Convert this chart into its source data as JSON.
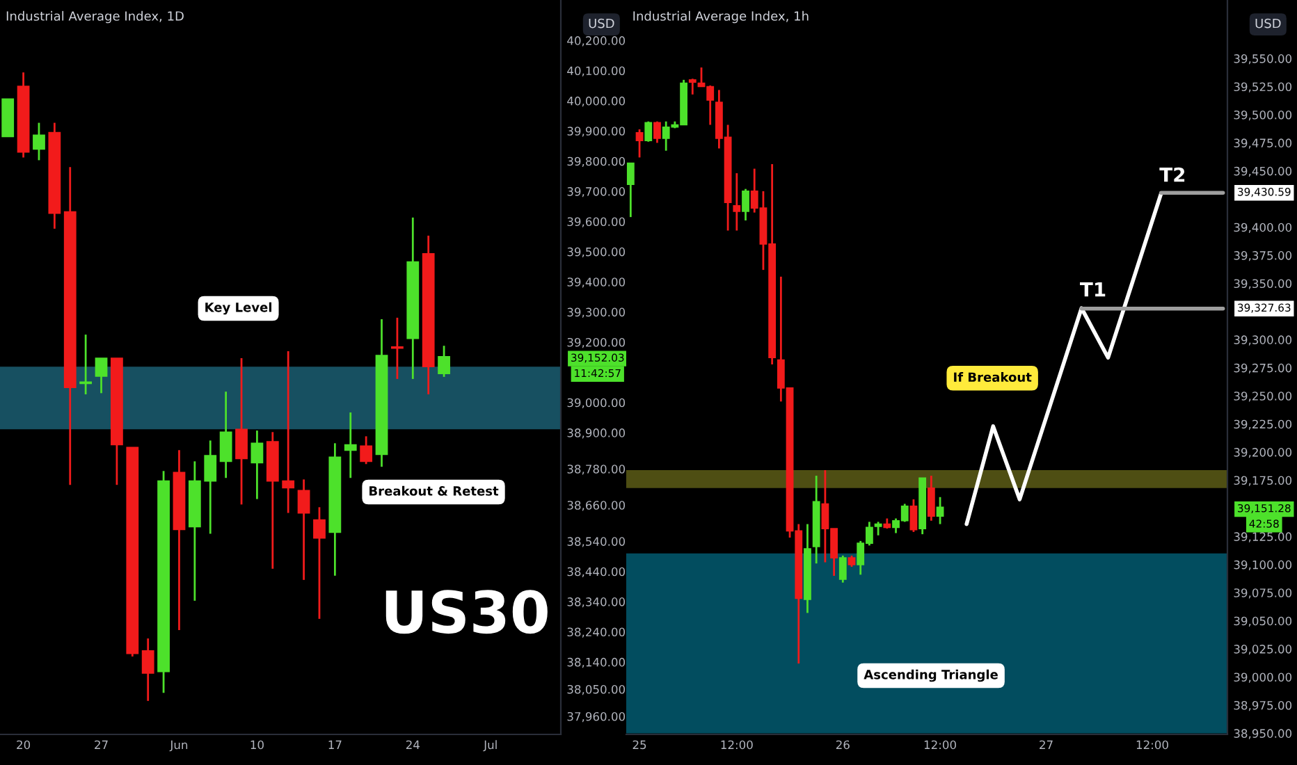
{
  "chart_data": [
    {
      "type": "candlestick",
      "title": "Industrial Average Index, 1D",
      "categories": [
        null,
        "20",
        null,
        null,
        null,
        null,
        "27",
        null,
        null,
        null,
        null,
        "Jun",
        null,
        null,
        null,
        null,
        "10",
        null,
        null,
        null,
        null,
        "17",
        null,
        null,
        null,
        null,
        "24",
        null,
        null,
        null,
        null,
        "Jul",
        null,
        null,
        null,
        null
      ],
      "ohlc": [
        [
          39881,
          40006,
          39881,
          40006
        ],
        [
          40048,
          40094,
          39812,
          39830
        ],
        [
          39840,
          39927,
          39803,
          39886
        ],
        [
          39895,
          39927,
          39576,
          39627
        ],
        [
          39632,
          39780,
          38727,
          39050
        ],
        [
          39063,
          39225,
          39027,
          39068
        ],
        [
          39087,
          39147,
          39031,
          39147
        ],
        [
          39147,
          39147,
          38727,
          38860
        ],
        [
          38851,
          38851,
          38158,
          38168
        ],
        [
          38177,
          38218,
          38011,
          38103
        ],
        [
          38108,
          38773,
          38038,
          38740
        ],
        [
          38768,
          38842,
          38246,
          38579
        ],
        [
          38588,
          38805,
          38343,
          38740
        ],
        [
          38740,
          38874,
          38565,
          38824
        ],
        [
          38805,
          39036,
          38750,
          38902
        ],
        [
          38911,
          39147,
          38662,
          38814
        ],
        [
          38800,
          38907,
          38680,
          38865
        ],
        [
          38870,
          38902,
          38449,
          38740
        ],
        [
          38740,
          39170,
          38634,
          38717
        ],
        [
          38708,
          38745,
          38412,
          38634
        ],
        [
          38611,
          38653,
          38283,
          38551
        ],
        [
          38570,
          38865,
          38426,
          38819
        ],
        [
          38842,
          38967,
          38750,
          38860
        ],
        [
          38856,
          38888,
          38796,
          38805
        ],
        [
          38828,
          39276,
          38787,
          39156
        ],
        [
          39184,
          39281,
          39078,
          39180
        ],
        [
          39212,
          39613,
          39078,
          39466
        ],
        [
          39493,
          39553,
          39027,
          39119
        ],
        [
          39096,
          39188,
          39085,
          39152
        ],
        null,
        null,
        null,
        null,
        null,
        null,
        null
      ],
      "colors": [
        "#4de12b",
        "#f21b1b",
        "#4de12b",
        "#f21b1b",
        "#f21b1b",
        "#4de12b",
        "#4de12b",
        "#f21b1b",
        "#f21b1b",
        "#f21b1b",
        "#4de12b",
        "#f21b1b",
        "#4de12b",
        "#4de12b",
        "#4de12b",
        "#f21b1b",
        "#4de12b",
        "#f21b1b",
        "#f21b1b",
        "#f21b1b",
        "#f21b1b",
        "#4de12b",
        "#4de12b",
        "#f21b1b",
        "#4de12b",
        "#f21b1b",
        "#4de12b",
        "#f21b1b",
        "#4de12b",
        null,
        null,
        null,
        null,
        null,
        null,
        null
      ],
      "ylim": [
        37900,
        40334
      ],
      "yticks": [
        {
          "value": 37960,
          "label": "37,960.00"
        },
        {
          "value": 38050,
          "label": "38,050.00"
        },
        {
          "value": 38140,
          "label": "38,140.00"
        },
        {
          "value": 38240,
          "label": "38,240.00"
        },
        {
          "value": 38340,
          "label": "38,340.00"
        },
        {
          "value": 38440,
          "label": "38,440.00"
        },
        {
          "value": 38540,
          "label": "38,540.00"
        },
        {
          "value": 38660,
          "label": "38,660.00"
        },
        {
          "value": 38780,
          "label": "38,780.00"
        },
        {
          "value": 38900,
          "label": "38,900.00"
        },
        {
          "value": 39000,
          "label": "39,000.00"
        },
        {
          "value": 39200,
          "label": "39,200.00"
        },
        {
          "value": 39300,
          "label": "39,300.00"
        },
        {
          "value": 39400,
          "label": "39,400.00"
        },
        {
          "value": 39500,
          "label": "39,500.00"
        },
        {
          "value": 39600,
          "label": "39,600.00"
        },
        {
          "value": 39700,
          "label": "39,700.00"
        },
        {
          "value": 39800,
          "label": "39,800.00"
        },
        {
          "value": 39900,
          "label": "39,900.00"
        },
        {
          "value": 40000,
          "label": "40,000.00"
        },
        {
          "value": 40100,
          "label": "40,100.00"
        },
        {
          "value": 40200,
          "label": "40,200.00"
        }
      ],
      "bands": [
        {
          "axis": "y",
          "from": 38911,
          "to": 39119,
          "color": "#1b5e72"
        }
      ],
      "annotations": [
        "USD",
        "Key Level",
        "Breakout & Retest",
        "US30",
        "39,152.03",
        "11:42:57"
      ]
    },
    {
      "type": "candlestick",
      "title": "Industrial Average Index, 1h",
      "categories": [
        null,
        "25",
        null,
        null,
        null,
        null,
        null,
        null,
        null,
        null,
        null,
        null,
        "12:00",
        null,
        null,
        null,
        null,
        null,
        null,
        null,
        null,
        null,
        null,
        null,
        "26",
        null,
        null,
        null,
        null,
        null,
        null,
        null,
        null,
        null,
        null,
        "12:00",
        null,
        null,
        null,
        null,
        null,
        null,
        null,
        null,
        null,
        null,
        null,
        "27",
        null,
        null,
        null,
        null,
        null,
        null,
        null,
        null,
        null,
        null,
        null,
        "12:00",
        null,
        null,
        null,
        null,
        null,
        null,
        null,
        null
      ],
      "ohlc": [
        [
          39438,
          39457,
          39409,
          39457
        ],
        [
          39484,
          39487,
          39462,
          39477
        ],
        [
          39477,
          39494,
          39476,
          39493
        ],
        [
          39493,
          39494,
          39475,
          39479
        ],
        [
          39479,
          39494,
          39468,
          39489
        ],
        [
          39489,
          39494,
          39488,
          39491
        ],
        [
          39491,
          39531,
          39491,
          39528
        ],
        [
          39531,
          39532,
          39518,
          39529
        ],
        [
          39528,
          39542,
          39525,
          39525
        ],
        [
          39525,
          39526,
          39491,
          39513
        ],
        [
          39511,
          39522,
          39470,
          39479
        ],
        [
          39480,
          39491,
          39397,
          39422
        ],
        [
          39419,
          39448,
          39397,
          39414
        ],
        [
          39414,
          39434,
          39406,
          39432
        ],
        [
          39432,
          39452,
          39413,
          39417
        ],
        [
          39417,
          39432,
          39362,
          39385
        ],
        [
          39385,
          39456,
          39278,
          39284
        ],
        [
          39282,
          39356,
          39245,
          39257
        ],
        [
          39257,
          39257,
          39124,
          39130
        ],
        [
          39130,
          39136,
          39012,
          39070
        ],
        [
          39069,
          39136,
          39057,
          39114
        ],
        [
          39116,
          39179,
          39101,
          39156
        ],
        [
          39154,
          39184,
          39102,
          39132
        ],
        [
          39132,
          39132,
          39090,
          39106
        ],
        [
          39087,
          39108,
          39084,
          39106
        ],
        [
          39106,
          39108,
          39098,
          39100
        ],
        [
          39100,
          39121,
          39091,
          39119
        ],
        [
          39119,
          39138,
          39117,
          39133
        ],
        [
          39134,
          39138,
          39126,
          39136
        ],
        [
          39136,
          39141,
          39132,
          39133
        ],
        [
          39133,
          39141,
          39128,
          39139
        ],
        [
          39139,
          39154,
          39138,
          39152
        ],
        [
          39152,
          39158,
          39129,
          39131
        ],
        [
          39132,
          39177,
          39127,
          39177
        ],
        [
          39168,
          39179,
          39139,
          39143
        ],
        [
          39143,
          39160,
          39136,
          39151
        ],
        null,
        null,
        null,
        null,
        null,
        null,
        null,
        null,
        null,
        null,
        null,
        null,
        null,
        null,
        null,
        null,
        null,
        null,
        null,
        null,
        null,
        null,
        null,
        null,
        null,
        null,
        null,
        null,
        null,
        null,
        null,
        null
      ],
      "colors": [
        "#4de12b",
        "#f21b1b",
        "#4de12b",
        "#f21b1b",
        "#4de12b",
        "#4de12b",
        "#4de12b",
        "#f21b1b",
        "#f21b1b",
        "#f21b1b",
        "#f21b1b",
        "#f21b1b",
        "#f21b1b",
        "#4de12b",
        "#f21b1b",
        "#f21b1b",
        "#f21b1b",
        "#f21b1b",
        "#f21b1b",
        "#f21b1b",
        "#4de12b",
        "#4de12b",
        "#f21b1b",
        "#f21b1b",
        "#4de12b",
        "#f21b1b",
        "#4de12b",
        "#4de12b",
        "#4de12b",
        "#f21b1b",
        "#4de12b",
        "#4de12b",
        "#f21b1b",
        "#4de12b",
        "#f21b1b",
        "#4de12b",
        null,
        null,
        null,
        null,
        null,
        null,
        null,
        null,
        null,
        null,
        null,
        null,
        null,
        null,
        null,
        null,
        null,
        null,
        null,
        null,
        null,
        null,
        null,
        null,
        null,
        null,
        null,
        null,
        null,
        null,
        null,
        null
      ],
      "series": [
        {
          "type": "line",
          "color": "#ffffff",
          "values": [
            null,
            null,
            null,
            null,
            null,
            null,
            null,
            null,
            null,
            null,
            null,
            null,
            null,
            null,
            null,
            null,
            null,
            null,
            null,
            null,
            null,
            null,
            null,
            null,
            null,
            null,
            null,
            null,
            null,
            null,
            null,
            null,
            null,
            null,
            null,
            null,
            null,
            null,
            39136,
            null,
            null,
            39223,
            null,
            null,
            39158,
            null,
            null,
            null,
            null,
            null,
            null,
            39328,
            null,
            null,
            39284,
            null,
            null,
            null,
            null,
            null,
            39430,
            null,
            null,
            null,
            null,
            null,
            null,
            null
          ]
        },
        {
          "type": "line",
          "color": "#9e9e9e",
          "values": [
            null,
            null,
            null,
            null,
            null,
            null,
            null,
            null,
            null,
            null,
            null,
            null,
            null,
            null,
            null,
            null,
            null,
            null,
            null,
            null,
            null,
            null,
            null,
            null,
            null,
            null,
            null,
            null,
            null,
            null,
            null,
            null,
            null,
            null,
            null,
            null,
            null,
            null,
            null,
            null,
            null,
            null,
            null,
            null,
            null,
            null,
            null,
            null,
            null,
            null,
            null,
            39327.63,
            39327.63,
            39327.63,
            39327.63,
            39327.63,
            39327.63,
            39327.63,
            39327.63,
            39327.63,
            39327.63,
            39327.63,
            39327.63,
            39327.63,
            39327.63,
            39327.63,
            39327.63,
            39327.63
          ]
        },
        {
          "type": "line",
          "color": "#9e9e9e",
          "values": [
            null,
            null,
            null,
            null,
            null,
            null,
            null,
            null,
            null,
            null,
            null,
            null,
            null,
            null,
            null,
            null,
            null,
            null,
            null,
            null,
            null,
            null,
            null,
            null,
            null,
            null,
            null,
            null,
            null,
            null,
            null,
            null,
            null,
            null,
            null,
            null,
            null,
            null,
            null,
            null,
            null,
            null,
            null,
            null,
            null,
            null,
            null,
            null,
            null,
            null,
            null,
            null,
            null,
            null,
            null,
            null,
            null,
            null,
            null,
            null,
            39430.59,
            39430.59,
            39430.59,
            39430.59,
            39430.59,
            39430.59,
            39430.59,
            39430.59
          ]
        }
      ],
      "ylim": [
        38949,
        39602
      ],
      "yticks": [
        {
          "value": 38950,
          "label": "38,950.00"
        },
        {
          "value": 38975,
          "label": "38,975.00"
        },
        {
          "value": 39000,
          "label": "39,000.00"
        },
        {
          "value": 39025,
          "label": "39,025.00"
        },
        {
          "value": 39050,
          "label": "39,050.00"
        },
        {
          "value": 39075,
          "label": "39,075.00"
        },
        {
          "value": 39100,
          "label": "39,100.00"
        },
        {
          "value": 39125,
          "label": "39,125.00"
        },
        {
          "value": 39175,
          "label": "39,175.00"
        },
        {
          "value": 39200,
          "label": "39,200.00"
        },
        {
          "value": 39225,
          "label": "39,225.00"
        },
        {
          "value": 39250,
          "label": "39,250.00"
        },
        {
          "value": 39275,
          "label": "39,275.00"
        },
        {
          "value": 39300,
          "label": "39,300.00"
        },
        {
          "value": 39350,
          "label": "39,350.00"
        },
        {
          "value": 39375,
          "label": "39,375.00"
        },
        {
          "value": 39400,
          "label": "39,400.00"
        },
        {
          "value": 39450,
          "label": "39,450.00"
        },
        {
          "value": 39475,
          "label": "39,475.00"
        },
        {
          "value": 39500,
          "label": "39,500.00"
        },
        {
          "value": 39525,
          "label": "39,525.00"
        },
        {
          "value": 39550,
          "label": "39,550.00"
        }
      ],
      "bands": [
        {
          "axis": "y",
          "from": 38950,
          "to": 39110,
          "color": "#025a70"
        },
        {
          "axis": "y",
          "from": 39168,
          "to": 39184,
          "color": "#5c5c16"
        }
      ],
      "annotations": [
        "USD",
        "If Breakout",
        "Ascending Triangle",
        "T1",
        "T2",
        "39,430.59",
        "39,327.63",
        "39,151.28",
        "42:58"
      ]
    }
  ]
}
